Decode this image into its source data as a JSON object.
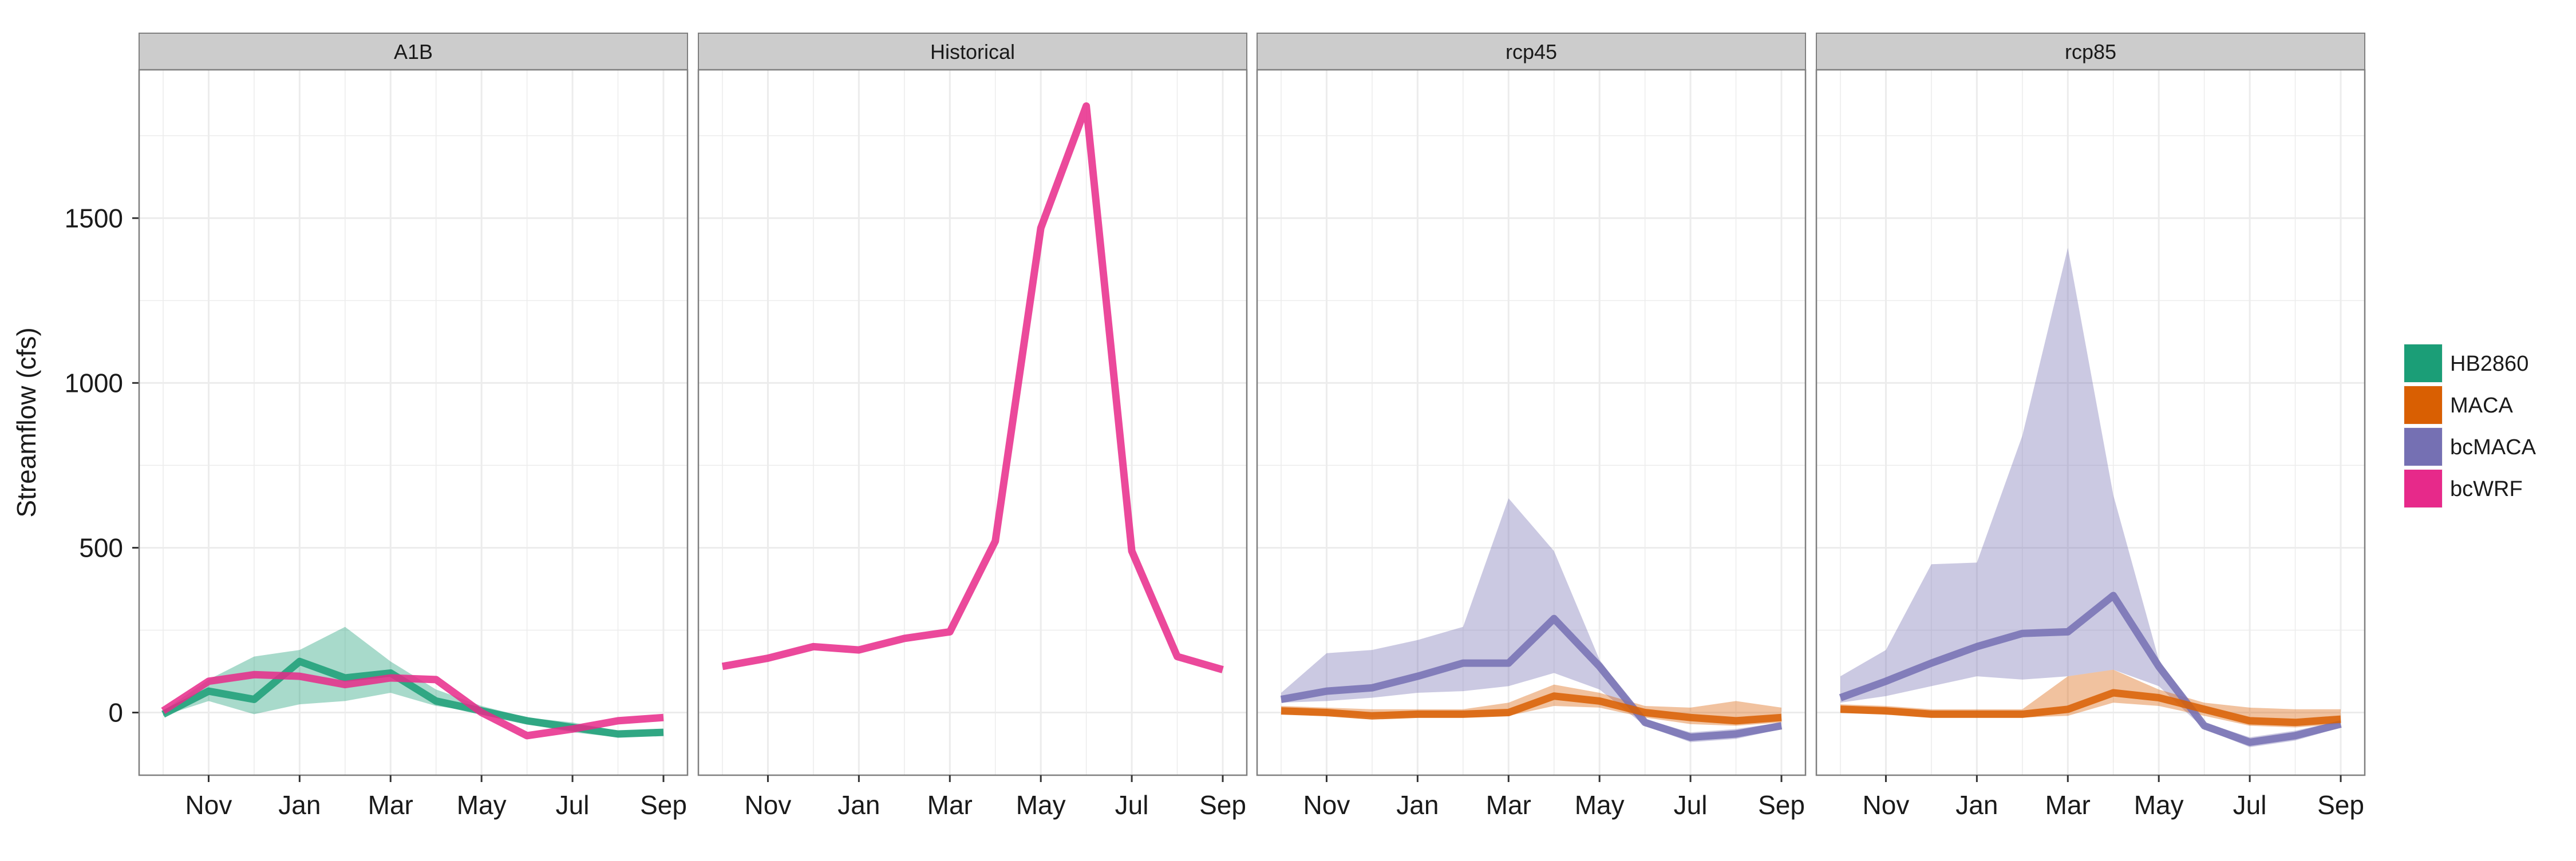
{
  "chart_data": {
    "type": "line",
    "ylabel": "Streamflow (cfs)",
    "xlabel": "",
    "ylim": [
      -190,
      1950
    ],
    "y_ticks": [
      0,
      500,
      1000,
      1500
    ],
    "y_tick_labels": [
      "0",
      "500",
      "1000",
      "1500"
    ],
    "months": [
      "Oct",
      "Nov",
      "Dec",
      "Jan",
      "Feb",
      "Mar",
      "Apr",
      "May",
      "Jun",
      "Jul",
      "Aug",
      "Sep"
    ],
    "x_tick_labels": [
      "Nov",
      "Jan",
      "Mar",
      "May",
      "Jul",
      "Sep"
    ],
    "x_tick_months": [
      "Nov",
      "Jan",
      "Mar",
      "May",
      "Jul",
      "Sep"
    ],
    "grid": true,
    "legend_position": "right",
    "legend": [
      {
        "name": "HB2860",
        "color": "#1B9E77"
      },
      {
        "name": "MACA",
        "color": "#D95F02"
      },
      {
        "name": "bcMACA",
        "color": "#7570B3"
      },
      {
        "name": "bcWRF",
        "color": "#E7298A"
      }
    ],
    "panels": [
      {
        "title": "A1B",
        "series": [
          {
            "name": "HB2860",
            "values": [
              -5,
              65,
              40,
              155,
              105,
              120,
              35,
              5,
              -25,
              -45,
              -65,
              -60
            ],
            "band_lower": [
              -10,
              35,
              -5,
              25,
              35,
              60,
              20,
              0,
              -35,
              -60,
              -75,
              -70
            ],
            "band_upper": [
              5,
              100,
              170,
              190,
              260,
              155,
              70,
              20,
              -15,
              -30,
              -55,
              -50
            ]
          },
          {
            "name": "bcWRF",
            "values": [
              5,
              95,
              115,
              110,
              85,
              105,
              100,
              0,
              -70,
              -50,
              -25,
              -15
            ]
          }
        ]
      },
      {
        "title": "Historical",
        "series": [
          {
            "name": "bcWRF",
            "values": [
              140,
              165,
              200,
              190,
              225,
              245,
              520,
              1470,
              1840,
              490,
              170,
              130
            ]
          }
        ]
      },
      {
        "title": "rcp45",
        "series": [
          {
            "name": "bcMACA",
            "values": [
              40,
              65,
              75,
              110,
              150,
              150,
              285,
              140,
              -30,
              -75,
              -65,
              -40
            ],
            "band_lower": [
              30,
              35,
              45,
              60,
              65,
              80,
              120,
              70,
              -40,
              -90,
              -80,
              -50
            ],
            "band_upper": [
              60,
              180,
              190,
              220,
              260,
              650,
              490,
              160,
              -20,
              -60,
              -50,
              -30
            ]
          },
          {
            "name": "MACA",
            "values": [
              5,
              0,
              -10,
              -5,
              -5,
              0,
              50,
              35,
              0,
              -15,
              -25,
              -15
            ],
            "band_lower": [
              -5,
              -10,
              -15,
              -15,
              -15,
              -10,
              20,
              15,
              -15,
              -35,
              -40,
              -30
            ],
            "band_upper": [
              20,
              15,
              10,
              10,
              10,
              30,
              85,
              60,
              20,
              15,
              35,
              15
            ]
          }
        ]
      },
      {
        "title": "rcp85",
        "series": [
          {
            "name": "bcMACA",
            "values": [
              45,
              95,
              150,
              200,
              240,
              245,
              355,
              140,
              -40,
              -90,
              -70,
              -35
            ],
            "band_lower": [
              30,
              50,
              80,
              110,
              100,
              110,
              130,
              80,
              -50,
              -105,
              -85,
              -45
            ],
            "band_upper": [
              110,
              190,
              450,
              455,
              840,
              1410,
              660,
              160,
              -30,
              -75,
              -55,
              -25
            ]
          },
          {
            "name": "MACA",
            "values": [
              10,
              5,
              -5,
              -5,
              -5,
              10,
              60,
              45,
              10,
              -25,
              -30,
              -20
            ],
            "band_lower": [
              0,
              -5,
              -15,
              -15,
              -15,
              -10,
              30,
              20,
              -10,
              -40,
              -45,
              -35
            ],
            "band_upper": [
              25,
              20,
              10,
              10,
              10,
              110,
              130,
              70,
              30,
              15,
              10,
              10
            ]
          }
        ]
      }
    ]
  }
}
